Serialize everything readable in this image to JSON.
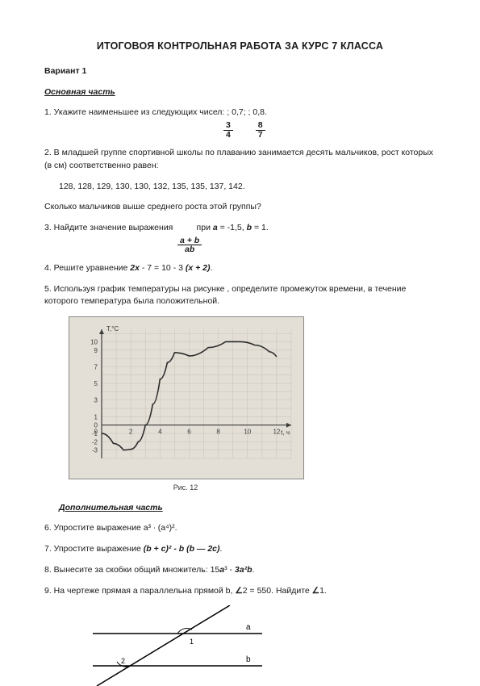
{
  "title": "ИТОГОВОЯ КОНТРОЛЬНАЯ РАБОТА ЗА КУРС 7 КЛАССА",
  "variant": "Вариант   1",
  "section1": "Основная часть",
  "q1": {
    "text": "1.   Укажите наименьшее из следующих чисел:     ; 0,7;     ; 0,8.",
    "frac1_num": "3",
    "frac1_den": "4",
    "frac2_num": "8",
    "frac2_den": "7"
  },
  "q2": {
    "l1": "2.  В младшей группе спортивной школы по плаванию занимается десять мальчиков, рост которых (в см) соответственно равен:",
    "data": "128, 128, 129, 130, 130, 132, 135, 135, 137, 142.",
    "l2": "Сколько мальчиков выше среднего роста этой группы?"
  },
  "q3": {
    "l1": "3.  Найдите значение выражения          при a = -1,5, b = 1.",
    "num": "a + b",
    "den": "ab"
  },
  "q4": "4.  Решите уравнение 2x - 7 = 10 - 3 (x + 2).",
  "q5": "5. Используя график температуры на рисунке , определите промежуток времени, в течение которого температура была положительной.",
  "graph": {
    "bg": "#e3dfd6",
    "grid": "#c8c1b4",
    "axis": "#3b3b3b",
    "curve": "#2a2a2a",
    "yTicks": [
      -3,
      -2,
      -1,
      0,
      1,
      3,
      5,
      7,
      9,
      10
    ],
    "xTicks": [
      2,
      4,
      6,
      8,
      10,
      12
    ],
    "yLabel": "T,°C",
    "xLabel": "t, ч",
    "caption": "Рис. 12",
    "points": [
      [
        0,
        -1
      ],
      [
        0.8,
        -2.2
      ],
      [
        1.5,
        -3
      ],
      [
        2,
        -2.9
      ],
      [
        2.5,
        -2
      ],
      [
        3,
        0
      ],
      [
        3.5,
        2.5
      ],
      [
        4,
        5.5
      ],
      [
        4.5,
        7.5
      ],
      [
        5,
        8.7
      ],
      [
        6,
        8.3
      ],
      [
        7.3,
        9.3
      ],
      [
        8.5,
        10
      ],
      [
        9.5,
        10
      ],
      [
        10.5,
        9.6
      ],
      [
        11.5,
        8.8
      ],
      [
        12,
        8.2
      ]
    ]
  },
  "section2": "Дополнительная часть",
  "q6": "6.  Упростите выражение a³ ∙ (a⁴)².",
  "q7": "7.  Упростите выражение (b + c)² - b (b — 2c).",
  "q8": "8.   Вынесите за скобки общий множитель: 15a³ - 3a²b.",
  "q9": "9. На чертеже   прямая a параллельна прямой b, ∠2 = 550. Найдите ∠1.",
  "geom": {
    "a": "a",
    "b": "b",
    "ang1": "1",
    "ang2": "2"
  }
}
